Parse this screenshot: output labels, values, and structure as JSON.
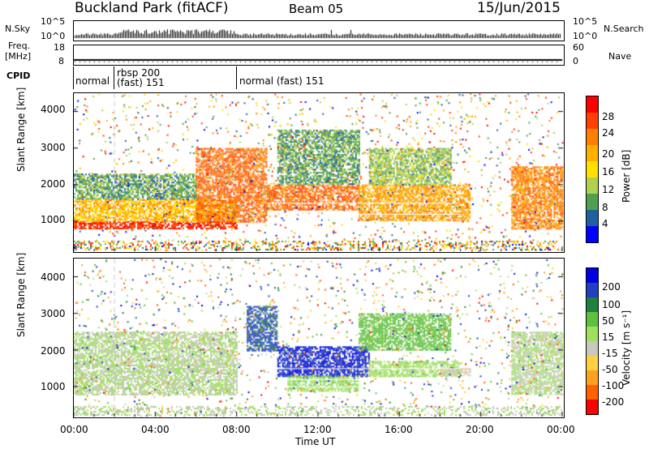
{
  "header": {
    "title": "Buckland Park (fitACF)",
    "beam": "Beam 05",
    "date": "15/Jun/2015"
  },
  "strip_labels": {
    "nsky": "N.Sky",
    "nsearch": "N.Search",
    "freq": "Freq.",
    "freq_unit": "[MHz]",
    "nave": "Nave",
    "cpid": "CPID",
    "pow_tick_hi": "10^5",
    "pow_tick_lo": "10^0",
    "pow_tick_hi_r": "10^5",
    "pow_tick_lo_r": "10^0",
    "freq_hi": "18",
    "freq_lo": "8",
    "nave_hi": "60",
    "nave_lo": "0"
  },
  "cpid_segments": [
    {
      "label": "normal",
      "start": "00:00"
    },
    {
      "label": "rbsp 200",
      "label2": "(fast) 151",
      "start": "02:00"
    },
    {
      "label": "normal (fast) 151",
      "start": "08:00"
    }
  ],
  "colorbars": {
    "power": {
      "label": "Power [dB]",
      "ticks": [
        "28",
        "24",
        "20",
        "16",
        "12",
        "8",
        "4"
      ],
      "colors": [
        "#ff0000",
        "#ff4000",
        "#ff8000",
        "#ffb000",
        "#ffe000",
        "#b0d050",
        "#50a050",
        "#2060a0",
        "#0000ff"
      ]
    },
    "velocity": {
      "label": "Velocity [m s⁻¹]",
      "ticks": [
        "200",
        "100",
        "50",
        "15",
        "-15",
        "-50",
        "-100",
        "-200"
      ],
      "colors": [
        "#0000e0",
        "#2040c0",
        "#208040",
        "#60c040",
        "#a0e060",
        "#c8c8c0",
        "#ffd040",
        "#ffa020",
        "#ff6000",
        "#ff0000"
      ]
    }
  },
  "chart_data": [
    {
      "type": "heatmap",
      "panel": "power",
      "ylabel": "Slant Range [km]",
      "yticks": [
        "4000",
        "3000",
        "2000",
        "1000"
      ],
      "ylim": [
        200,
        4500
      ],
      "xlim": [
        "00:00",
        "24:00"
      ],
      "color_range": [
        0,
        30
      ],
      "regions": [
        {
          "t0": 0.0,
          "t1": 8.0,
          "r0": 800,
          "r1": 1000,
          "value": 28
        },
        {
          "t0": 0.0,
          "t1": 8.0,
          "r0": 1000,
          "r1": 1600,
          "value": 18
        },
        {
          "t0": 0.0,
          "t1": 6.0,
          "r0": 1600,
          "r1": 2300,
          "value": 8
        },
        {
          "t0": 6.0,
          "t1": 9.5,
          "r0": 1000,
          "r1": 3000,
          "value": 24
        },
        {
          "t0": 9.5,
          "t1": 14.0,
          "r0": 1300,
          "r1": 2000,
          "value": 24
        },
        {
          "t0": 10.0,
          "t1": 14.0,
          "r0": 2000,
          "r1": 3500,
          "value": 8
        },
        {
          "t0": 14.0,
          "t1": 19.5,
          "r0": 1000,
          "r1": 2000,
          "value": 20
        },
        {
          "t0": 14.5,
          "t1": 18.5,
          "r0": 2000,
          "r1": 3000,
          "value": 10
        },
        {
          "t0": 21.5,
          "t1": 24.0,
          "r0": 800,
          "r1": 2500,
          "value": 22
        }
      ]
    },
    {
      "type": "heatmap",
      "panel": "velocity",
      "ylabel": "Slant Range [km]",
      "yticks": [
        "4000",
        "3000",
        "2000",
        "1000"
      ],
      "ylim": [
        200,
        4500
      ],
      "xlim": [
        "00:00",
        "24:00"
      ],
      "xticks": [
        "00:00",
        "04:00",
        "08:00",
        "12:00",
        "16:00",
        "20:00",
        "00:00"
      ],
      "xlabel": "Time UT",
      "color_range": [
        -250,
        250
      ],
      "regions": [
        {
          "t0": 0.0,
          "t1": 8.0,
          "r0": 800,
          "r1": 1600,
          "value": 0
        },
        {
          "t0": 0.0,
          "t1": 8.0,
          "r0": 1600,
          "r1": 2500,
          "value": 0
        },
        {
          "t0": 8.5,
          "t1": 10.0,
          "r0": 2000,
          "r1": 3200,
          "value": 180
        },
        {
          "t0": 10.0,
          "t1": 14.5,
          "r0": 1300,
          "r1": 2100,
          "value": 220
        },
        {
          "t0": 10.5,
          "t1": 14.0,
          "r0": 900,
          "r1": 1300,
          "value": 40
        },
        {
          "t0": 14.5,
          "t1": 19.0,
          "r0": 1300,
          "r1": 1700,
          "value": 30
        },
        {
          "t0": 14.0,
          "t1": 18.5,
          "r0": 2000,
          "r1": 3000,
          "value": 80
        },
        {
          "t0": 18.0,
          "t1": 19.5,
          "r0": 1300,
          "r1": 1500,
          "value": -40
        },
        {
          "t0": 21.5,
          "t1": 24.0,
          "r0": 800,
          "r1": 2500,
          "value": 0
        }
      ]
    }
  ]
}
